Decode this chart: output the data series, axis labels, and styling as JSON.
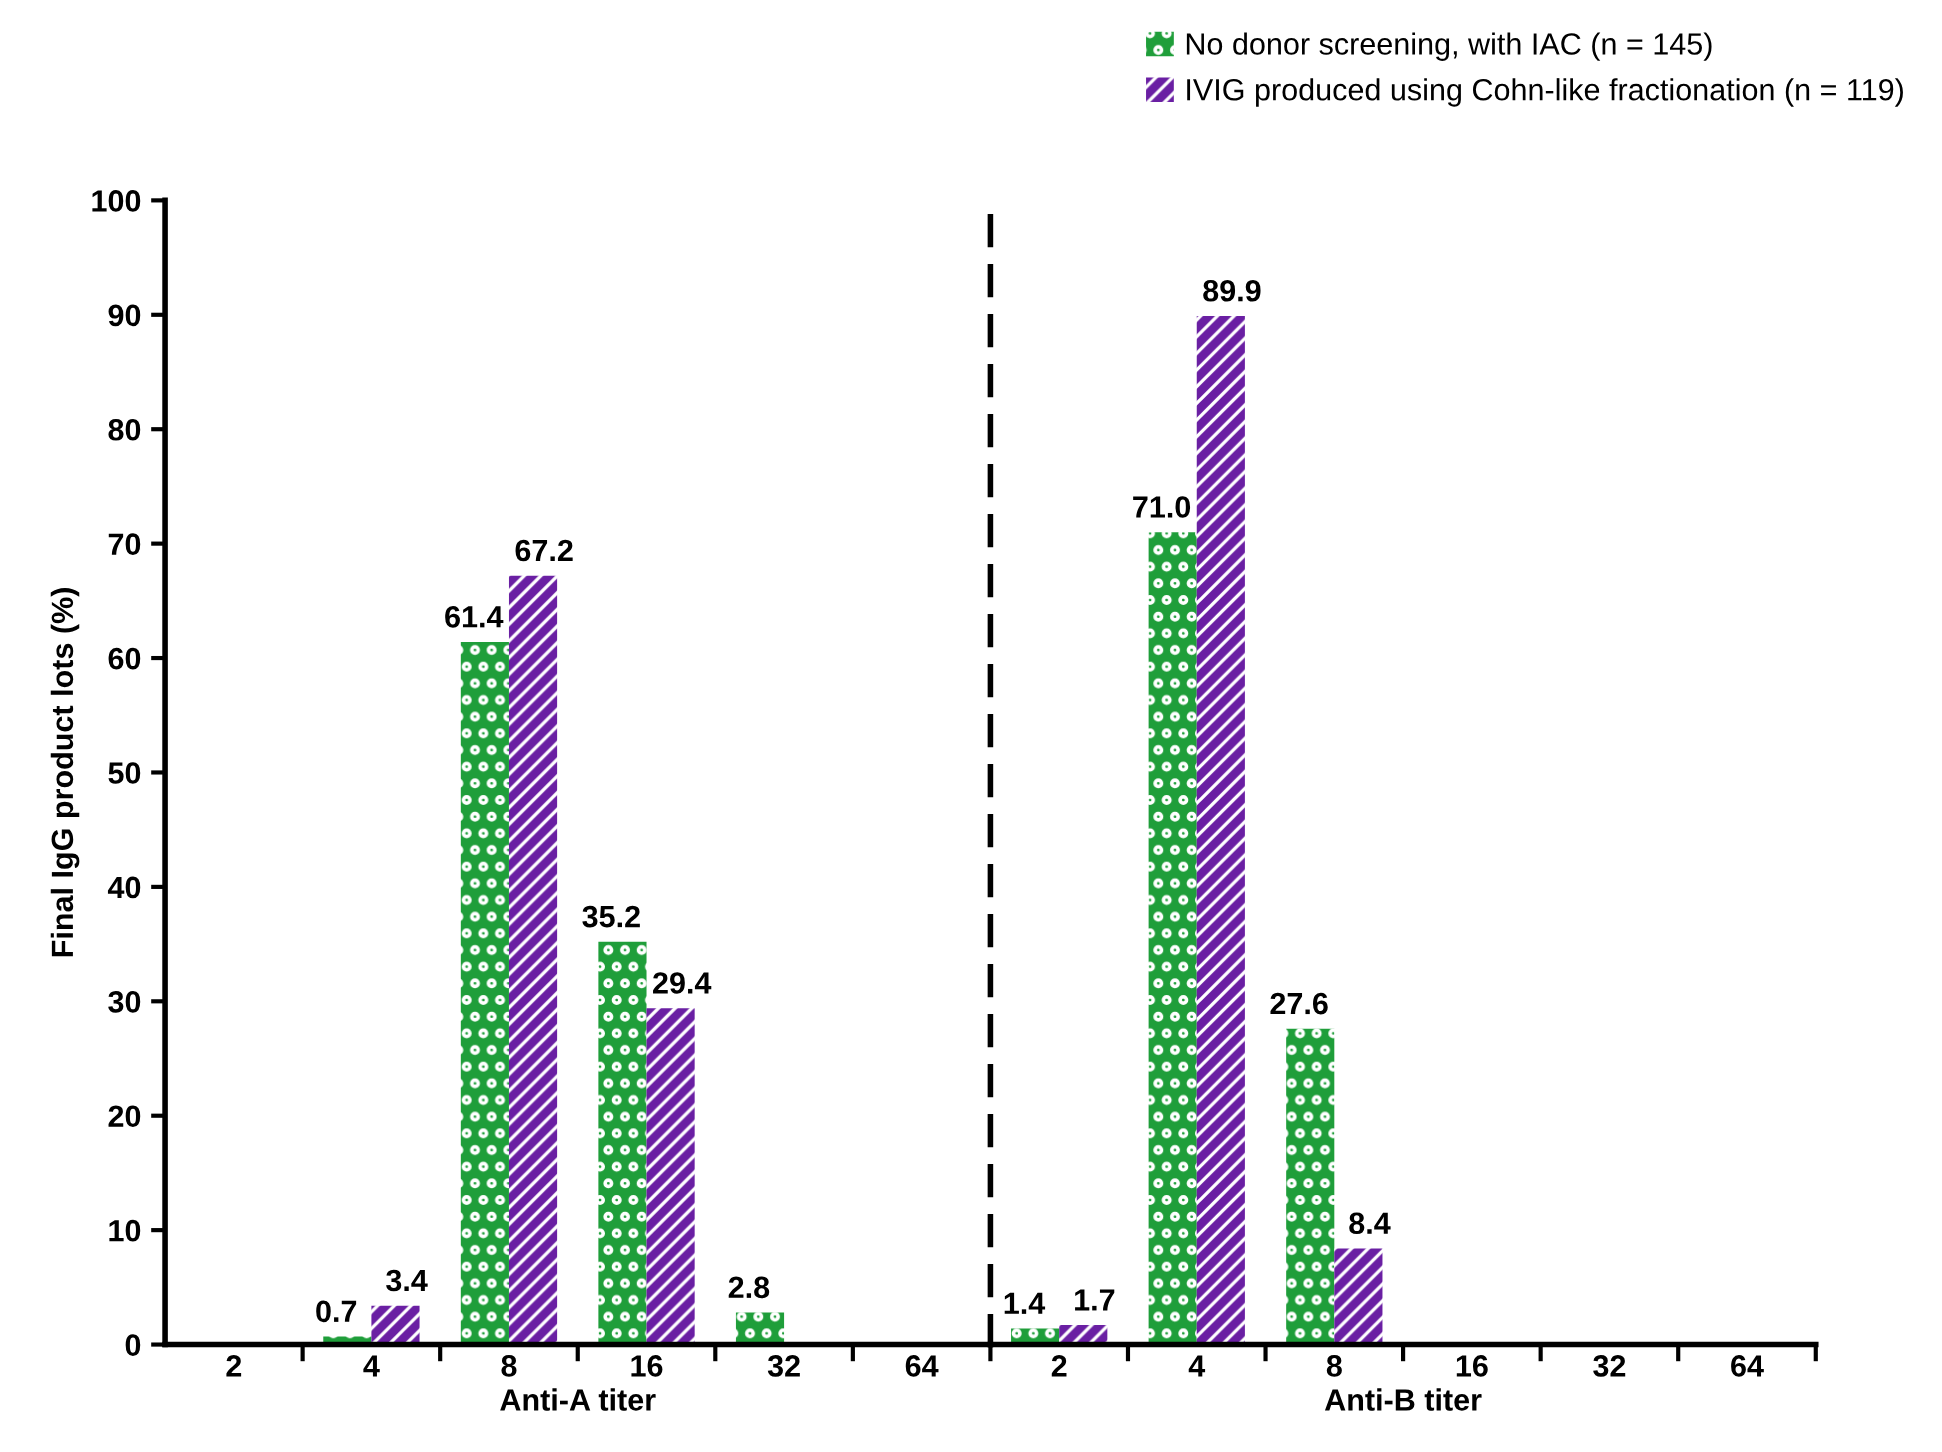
{
  "chart_data": [
    {
      "type": "bar",
      "categories": [
        "2",
        "4",
        "8",
        "16",
        "32",
        "64"
      ],
      "xlabel": "Anti-A titer",
      "ylabel": "Final IgG product lots (%)",
      "ylim": [
        0,
        100
      ],
      "yticks": [
        0,
        10,
        20,
        30,
        40,
        50,
        60,
        70,
        80,
        90,
        100
      ],
      "grid": false,
      "legend": "top right",
      "series": [
        {
          "name": "No donor screening, with IAC (n = 145)",
          "color": "#1f9e3a",
          "values": [
            0,
            0.7,
            61.4,
            35.2,
            2.8,
            0
          ],
          "value_labels": [
            null,
            "0.7",
            "61.4",
            "35.2",
            "2.8",
            null
          ]
        },
        {
          "name": "IVIG produced using Cohn-like fractionation (n = 119)",
          "color": "#6a1fa3",
          "values": [
            0,
            3.4,
            67.2,
            29.4,
            0,
            0
          ],
          "value_labels": [
            null,
            "3.4",
            "67.2",
            "29.4",
            null,
            null
          ]
        }
      ]
    },
    {
      "type": "bar",
      "categories": [
        "2",
        "4",
        "8",
        "16",
        "32",
        "64"
      ],
      "xlabel": "Anti-B titer",
      "ylim": [
        0,
        100
      ],
      "yticks": [
        0,
        10,
        20,
        30,
        40,
        50,
        60,
        70,
        80,
        90,
        100
      ],
      "tick_labels": "x",
      "grid": false,
      "series": [
        {
          "color": "#1f9e3a",
          "values": [
            1.4,
            71.0,
            27.6,
            0,
            0,
            0
          ],
          "value_labels": [
            "1.4",
            "71.0",
            "27.6",
            null,
            null,
            null
          ]
        },
        {
          "color": "#6a1fa3",
          "values": [
            1.7,
            89.9,
            8.4,
            0,
            0,
            0
          ],
          "value_labels": [
            "1.7",
            "89.9",
            "8.4",
            null,
            null,
            null
          ]
        }
      ]
    }
  ]
}
